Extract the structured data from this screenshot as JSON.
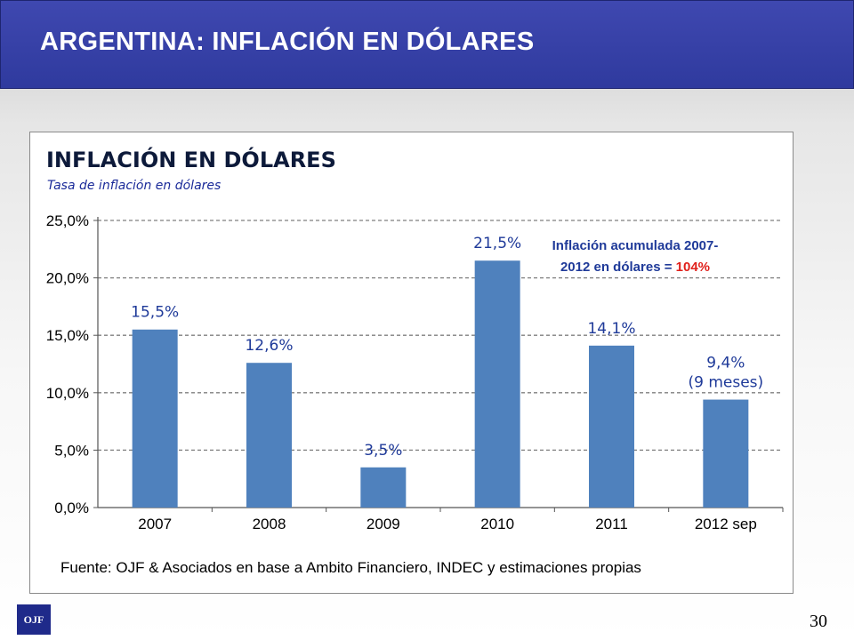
{
  "header": {
    "title": "ARGENTINA: INFLACIÓN EN DÓLARES"
  },
  "chart_data": {
    "type": "bar",
    "title": "INFLACIÓN EN DÓLARES",
    "subtitle": "Tasa de inflación en dólares",
    "categories": [
      "2007",
      "2008",
      "2009",
      "2010",
      "2011",
      "2012 sep"
    ],
    "values": [
      15.5,
      12.6,
      3.5,
      21.5,
      14.1,
      9.4
    ],
    "data_labels": [
      [
        "15,5%"
      ],
      [
        "12,6%"
      ],
      [
        "3,5%"
      ],
      [
        "21,5%"
      ],
      [
        "14,1%"
      ],
      [
        "9,4%",
        "(9 meses)"
      ]
    ],
    "ylim": [
      0,
      25
    ],
    "yticks": [
      "0,0%",
      "5,0%",
      "10,0%",
      "15,0%",
      "20,0%",
      "25,0%"
    ],
    "grid": true,
    "bar_color": "#4f81bd",
    "label_color": "#1f3a99",
    "annotation": {
      "line1": "Inflación acumulada 2007-",
      "line2": "2012 en dólares",
      "equals": " = ",
      "value": "104%",
      "text_color": "#1f3a99",
      "value_color": "#e0201b"
    }
  },
  "source": "Fuente: OJF & Asociados en base a Ambito Financiero, INDEC y estimaciones propias",
  "logo": "OJF",
  "page_number": "30"
}
